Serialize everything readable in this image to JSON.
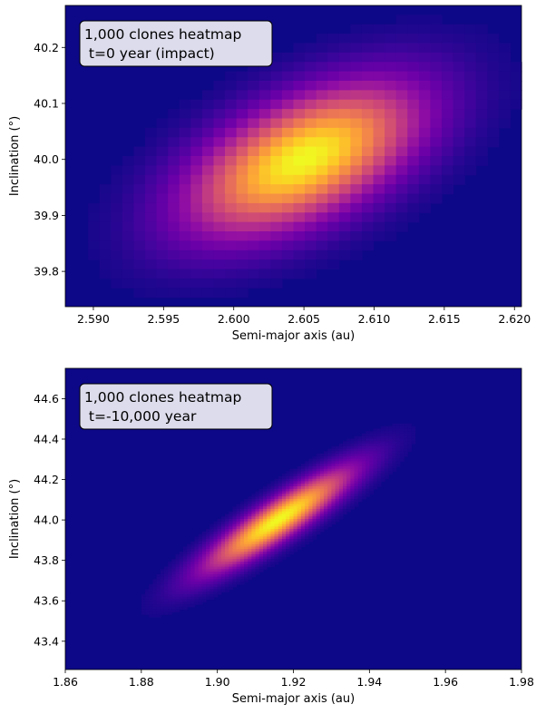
{
  "chart_data": [
    {
      "type": "heatmap",
      "legend_text": [
        "1,000 clones heatmap",
        " t=0 year (impact)"
      ],
      "legend_position": "top-left",
      "xlabel": "Semi-major axis (au)",
      "ylabel": "Inclination (°)",
      "xlim": [
        2.588,
        2.6205
      ],
      "ylim": [
        39.737,
        40.275
      ],
      "xticks": [
        2.59,
        2.595,
        2.6,
        2.605,
        2.61,
        2.615,
        2.62
      ],
      "xtick_labels": [
        "2.590",
        "2.595",
        "2.600",
        "2.605",
        "2.610",
        "2.615",
        "2.620"
      ],
      "yticks": [
        39.8,
        39.9,
        40.0,
        40.1,
        40.2
      ],
      "ytick_labels": [
        "39.8",
        "39.9",
        "40.0",
        "40.1",
        "40.2"
      ],
      "colormap": "plasma",
      "background_color": "#0d0887",
      "peak": {
        "x": 2.605,
        "y": 40.0
      },
      "spread": {
        "x": 0.0055,
        "y": 0.09,
        "correlation": 0.55
      },
      "grid": false,
      "pixelated": true,
      "bins": [
        40,
        32
      ]
    },
    {
      "type": "heatmap",
      "legend_text": [
        "1,000 clones heatmap",
        " t=-10,000 year"
      ],
      "legend_position": "top-left",
      "xlabel": "Semi-major axis (au)",
      "ylabel": "Inclination (°)",
      "xlim": [
        1.86,
        1.98
      ],
      "ylim": [
        43.26,
        44.75
      ],
      "xticks": [
        1.86,
        1.88,
        1.9,
        1.92,
        1.94,
        1.96,
        1.98
      ],
      "xtick_labels": [
        "1.86",
        "1.88",
        "1.90",
        "1.92",
        "1.94",
        "1.96",
        "1.98"
      ],
      "yticks": [
        43.4,
        43.6,
        43.8,
        44.0,
        44.2,
        44.4,
        44.6
      ],
      "ytick_labels": [
        "43.4",
        "43.6",
        "43.8",
        "44.0",
        "44.2",
        "44.4",
        "44.6"
      ],
      "colormap": "plasma",
      "background_color": "#0d0887",
      "peak": {
        "x": 1.916,
        "y": 44.0
      },
      "spread": {
        "x": 0.013,
        "y": 0.17,
        "correlation": 0.9
      },
      "grid": false,
      "pixelated": false,
      "bins": [
        120,
        120
      ]
    }
  ]
}
